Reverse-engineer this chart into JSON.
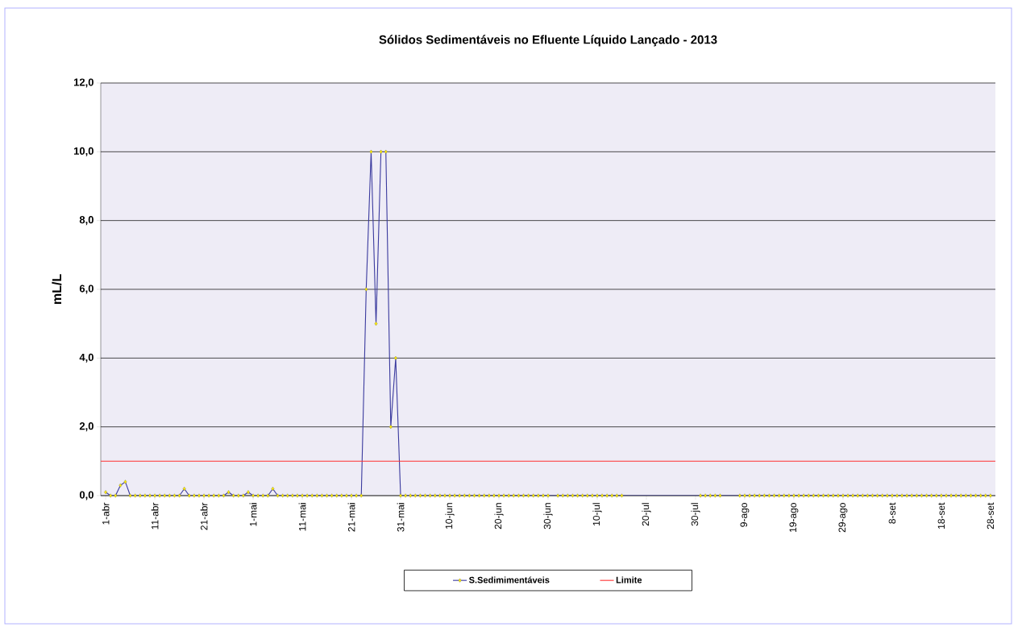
{
  "chart_data": {
    "type": "line",
    "title": "Sólidos Sedimentáveis no Efluente Líquido Lançado - 2013",
    "ylabel": "mL/L",
    "xlim": [
      "2013-03-31",
      "2013-09-29"
    ],
    "ylim": [
      0,
      12
    ],
    "xticks": [
      {
        "value": "2013-04-01",
        "label": "1-abr"
      },
      {
        "value": "2013-04-11",
        "label": "11-abr"
      },
      {
        "value": "2013-04-21",
        "label": "21-abr"
      },
      {
        "value": "2013-05-01",
        "label": "1-mai"
      },
      {
        "value": "2013-05-11",
        "label": "11-mai"
      },
      {
        "value": "2013-05-21",
        "label": "21-mai"
      },
      {
        "value": "2013-05-31",
        "label": "31-mai"
      },
      {
        "value": "2013-06-10",
        "label": "10-jun"
      },
      {
        "value": "2013-06-20",
        "label": "20-jun"
      },
      {
        "value": "2013-06-30",
        "label": "30-jun"
      },
      {
        "value": "2013-07-10",
        "label": "10-jul"
      },
      {
        "value": "2013-07-20",
        "label": "20-jul"
      },
      {
        "value": "2013-07-30",
        "label": "30-jul"
      },
      {
        "value": "2013-08-09",
        "label": "9-ago"
      },
      {
        "value": "2013-08-19",
        "label": "19-ago"
      },
      {
        "value": "2013-08-29",
        "label": "29-ago"
      },
      {
        "value": "2013-09-08",
        "label": "8-set"
      },
      {
        "value": "2013-09-18",
        "label": "18-set"
      },
      {
        "value": "2013-09-28",
        "label": "28-set"
      }
    ],
    "yticks": [
      {
        "value": 0,
        "label": "0,0"
      },
      {
        "value": 2,
        "label": "2,0"
      },
      {
        "value": 4,
        "label": "4,0"
      },
      {
        "value": 6,
        "label": "6,0"
      },
      {
        "value": 8,
        "label": "8,0"
      },
      {
        "value": 10,
        "label": "10,0"
      },
      {
        "value": 12,
        "label": "12,0"
      }
    ],
    "grid": "y",
    "legend": "bottom",
    "marker": "diamond",
    "series": [
      {
        "name": "S.Sedimimentáveis",
        "color": "#3a3a9e",
        "x": [
          "2013-04-01",
          "2013-04-02",
          "2013-04-03",
          "2013-04-04",
          "2013-04-05",
          "2013-04-06",
          "2013-04-07",
          "2013-04-08",
          "2013-04-09",
          "2013-04-10",
          "2013-04-11",
          "2013-04-12",
          "2013-04-13",
          "2013-04-14",
          "2013-04-15",
          "2013-04-16",
          "2013-04-17",
          "2013-04-18",
          "2013-04-19",
          "2013-04-20",
          "2013-04-21",
          "2013-04-22",
          "2013-04-23",
          "2013-04-24",
          "2013-04-25",
          "2013-04-26",
          "2013-04-27",
          "2013-04-28",
          "2013-04-29",
          "2013-04-30",
          "2013-05-01",
          "2013-05-02",
          "2013-05-03",
          "2013-05-04",
          "2013-05-05",
          "2013-05-06",
          "2013-05-07",
          "2013-05-08",
          "2013-05-09",
          "2013-05-10",
          "2013-05-11",
          "2013-05-12",
          "2013-05-13",
          "2013-05-14",
          "2013-05-15",
          "2013-05-16",
          "2013-05-17",
          "2013-05-18",
          "2013-05-19",
          "2013-05-20",
          "2013-05-21",
          "2013-05-22",
          "2013-05-23",
          "2013-05-24",
          "2013-05-25",
          "2013-05-26",
          "2013-05-27",
          "2013-05-28",
          "2013-05-29",
          "2013-05-30",
          "2013-05-31",
          "2013-06-01",
          "2013-06-02",
          "2013-06-03",
          "2013-06-04",
          "2013-06-05",
          "2013-06-06",
          "2013-06-07",
          "2013-06-08",
          "2013-06-09",
          "2013-06-10",
          "2013-06-11",
          "2013-06-12",
          "2013-06-13",
          "2013-06-14",
          "2013-06-15",
          "2013-06-16",
          "2013-06-17",
          "2013-06-18",
          "2013-06-19",
          "2013-06-20",
          "2013-06-21",
          "2013-06-22",
          "2013-06-23",
          "2013-06-24",
          "2013-06-25",
          "2013-06-26",
          "2013-06-27",
          "2013-06-28",
          "2013-06-29",
          "2013-06-30",
          "2013-07-02",
          "2013-07-03",
          "2013-07-04",
          "2013-07-05",
          "2013-07-06",
          "2013-07-07",
          "2013-07-08",
          "2013-07-09",
          "2013-07-10",
          "2013-07-11",
          "2013-07-12",
          "2013-07-13",
          "2013-07-14",
          "2013-07-15",
          "2013-07-31",
          "2013-08-01",
          "2013-08-02",
          "2013-08-03",
          "2013-08-04",
          "2013-08-08",
          "2013-08-09",
          "2013-08-10",
          "2013-08-11",
          "2013-08-12",
          "2013-08-13",
          "2013-08-14",
          "2013-08-15",
          "2013-08-16",
          "2013-08-17",
          "2013-08-18",
          "2013-08-19",
          "2013-08-20",
          "2013-08-21",
          "2013-08-22",
          "2013-08-23",
          "2013-08-24",
          "2013-08-25",
          "2013-08-26",
          "2013-08-27",
          "2013-08-28",
          "2013-08-29",
          "2013-08-30",
          "2013-08-31",
          "2013-09-01",
          "2013-09-02",
          "2013-09-03",
          "2013-09-04",
          "2013-09-05",
          "2013-09-06",
          "2013-09-07",
          "2013-09-08",
          "2013-09-09",
          "2013-09-10",
          "2013-09-11",
          "2013-09-12",
          "2013-09-13",
          "2013-09-14",
          "2013-09-15",
          "2013-09-16",
          "2013-09-17",
          "2013-09-18",
          "2013-09-19",
          "2013-09-20",
          "2013-09-21",
          "2013-09-22",
          "2013-09-23",
          "2013-09-24",
          "2013-09-25",
          "2013-09-26",
          "2013-09-27",
          "2013-09-28"
        ],
        "values": [
          0.1,
          0,
          0,
          0.3,
          0.4,
          0,
          0,
          0,
          0,
          0,
          0,
          0,
          0,
          0,
          0,
          0,
          0.2,
          0,
          0,
          0,
          0,
          0,
          0,
          0,
          0,
          0.1,
          0,
          0,
          0,
          0.1,
          0,
          0,
          0,
          0,
          0.2,
          0,
          0,
          0,
          0,
          0,
          0,
          0,
          0,
          0,
          0,
          0,
          0,
          0,
          0,
          0,
          0,
          0,
          0,
          6,
          10,
          5,
          10,
          10,
          2,
          4,
          0,
          0,
          0,
          0,
          0,
          0,
          0,
          0,
          0,
          0,
          0,
          0,
          0,
          0,
          0,
          0,
          0,
          0,
          0,
          0,
          0,
          0,
          0,
          0,
          0,
          0,
          0,
          0,
          0,
          0,
          0,
          0,
          0,
          0,
          0,
          0,
          0,
          0,
          0,
          0,
          0,
          0,
          0,
          0,
          0,
          0,
          0,
          0,
          0,
          0,
          0,
          0,
          0,
          0,
          0,
          0,
          0,
          0,
          0,
          0,
          0,
          0,
          0,
          0,
          0,
          0,
          0,
          0,
          0,
          0,
          0,
          0,
          0,
          0,
          0,
          0,
          0,
          0,
          0,
          0,
          0,
          0,
          0,
          0,
          0,
          0,
          0,
          0,
          0,
          0,
          0,
          0,
          0,
          0,
          0,
          0,
          0,
          0,
          0,
          0,
          0,
          0
        ]
      },
      {
        "name": "Limite",
        "color": "#ff3030",
        "marker": "none",
        "x": [
          "2013-03-31",
          "2013-09-29"
        ],
        "values": [
          1,
          1
        ]
      }
    ]
  }
}
